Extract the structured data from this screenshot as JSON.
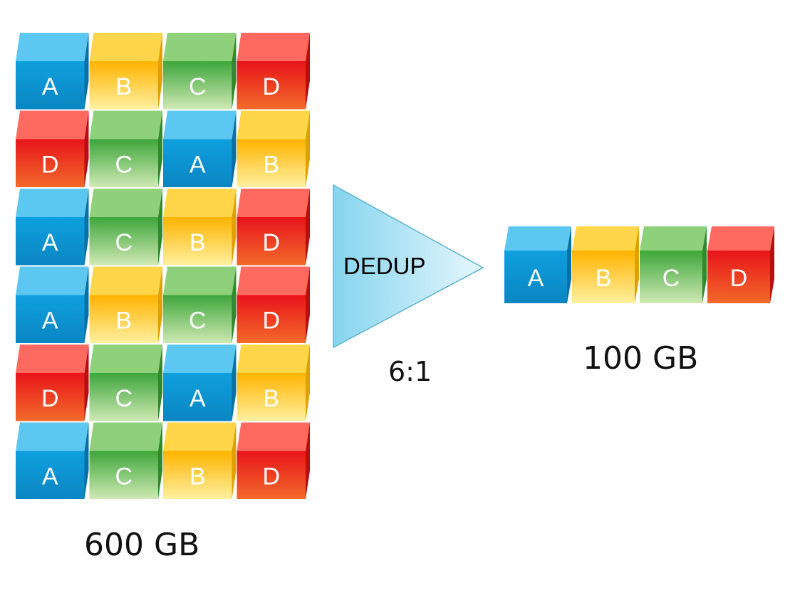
{
  "source": {
    "size_label": "600 GB",
    "rows": [
      [
        "A",
        "B",
        "C",
        "D"
      ],
      [
        "D",
        "C",
        "A",
        "B"
      ],
      [
        "A",
        "C",
        "B",
        "D"
      ],
      [
        "A",
        "B",
        "C",
        "D"
      ],
      [
        "D",
        "C",
        "A",
        "B"
      ],
      [
        "A",
        "C",
        "B",
        "D"
      ]
    ]
  },
  "process": {
    "label": "DEDUP",
    "ratio": "6:1"
  },
  "target": {
    "size_label": "100 GB",
    "blocks": [
      "A",
      "B",
      "C",
      "D"
    ]
  },
  "colors": {
    "A": {
      "front_top": "#0f9fde",
      "front_bottom": "#0a86c2",
      "top": "#5cc8f2",
      "side": "#0870a4",
      "text": "#ffffff"
    },
    "B": {
      "front_top": "#ffb300",
      "front_bottom": "#fff0a0",
      "top": "#ffd54a",
      "side": "#e0a000",
      "text": "#ffffff"
    },
    "C": {
      "front_top": "#3ea63b",
      "front_bottom": "#cfe9b4",
      "top": "#8fd07a",
      "side": "#2f8a2c",
      "text": "#ffffff"
    },
    "D": {
      "front_top": "#e8141b",
      "front_bottom": "#f26a2a",
      "top": "#ff6a60",
      "side": "#b70e12",
      "text": "#ffffff"
    },
    "triangle_light": "#e6f7fd",
    "triangle_dark": "#86d4ee",
    "triangle_stroke": "#5ab3d6"
  }
}
